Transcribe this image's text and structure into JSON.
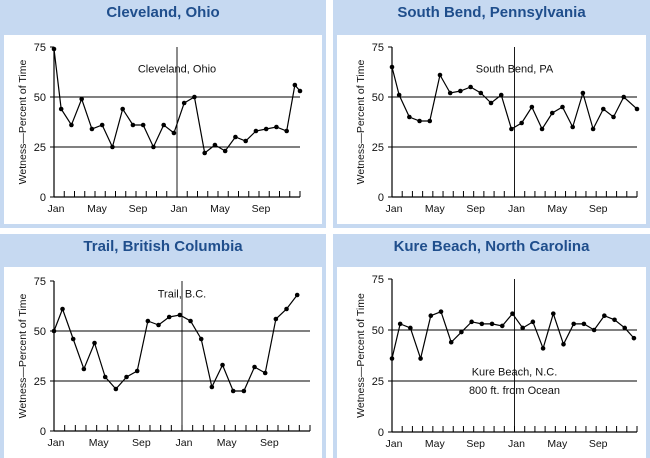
{
  "chart_data": [
    {
      "type": "line",
      "title": "Cleveland, Ohio",
      "annotation": [
        "Cleveland, Ohio"
      ],
      "ylabel": "Wetness—Percent of Time",
      "ylim": [
        0,
        75
      ],
      "yticks": [
        "0",
        "25",
        "50",
        "75"
      ],
      "xticks": [
        "Jan",
        "May",
        "Sep",
        "Jan",
        "May",
        "Sep"
      ],
      "xrange": [
        0,
        24
      ],
      "hlines": [
        25,
        50
      ],
      "vline": 12,
      "series": [
        {
          "values": [
            {
              "x": 0,
              "y": 74
            },
            {
              "x": 0.7,
              "y": 44
            },
            {
              "x": 1.7,
              "y": 36
            },
            {
              "x": 2.7,
              "y": 49
            },
            {
              "x": 3.7,
              "y": 34
            },
            {
              "x": 4.7,
              "y": 36
            },
            {
              "x": 5.7,
              "y": 25
            },
            {
              "x": 6.7,
              "y": 44
            },
            {
              "x": 7.7,
              "y": 36
            },
            {
              "x": 8.7,
              "y": 36
            },
            {
              "x": 9.7,
              "y": 25
            },
            {
              "x": 10.7,
              "y": 36
            },
            {
              "x": 11.7,
              "y": 32
            },
            {
              "x": 12.7,
              "y": 47
            },
            {
              "x": 13.7,
              "y": 50
            },
            {
              "x": 14.7,
              "y": 22
            },
            {
              "x": 15.7,
              "y": 26
            },
            {
              "x": 16.7,
              "y": 23
            },
            {
              "x": 17.7,
              "y": 30
            },
            {
              "x": 18.7,
              "y": 28
            },
            {
              "x": 19.7,
              "y": 33
            },
            {
              "x": 20.7,
              "y": 34
            },
            {
              "x": 21.7,
              "y": 35
            },
            {
              "x": 22.7,
              "y": 33
            },
            {
              "x": 23.5,
              "y": 56
            },
            {
              "x": 24,
              "y": 53
            }
          ]
        }
      ]
    },
    {
      "type": "line",
      "title": "South Bend, Pennsylvania",
      "annotation": [
        "South Bend, PA"
      ],
      "ylabel": "Wetness—Percent of Time",
      "ylim": [
        0,
        75
      ],
      "yticks": [
        "0",
        "25",
        "50",
        "75"
      ],
      "xticks": [
        "Jan",
        "May",
        "Sep",
        "Jan",
        "May",
        "Sep"
      ],
      "xrange": [
        0,
        24
      ],
      "hlines": [
        25,
        50
      ],
      "vline": 12,
      "series": [
        {
          "values": [
            {
              "x": 0,
              "y": 65
            },
            {
              "x": 0.7,
              "y": 51
            },
            {
              "x": 1.7,
              "y": 40
            },
            {
              "x": 2.7,
              "y": 38
            },
            {
              "x": 3.7,
              "y": 38
            },
            {
              "x": 4.7,
              "y": 61
            },
            {
              "x": 5.7,
              "y": 52
            },
            {
              "x": 6.7,
              "y": 53
            },
            {
              "x": 7.7,
              "y": 55
            },
            {
              "x": 8.7,
              "y": 52
            },
            {
              "x": 9.7,
              "y": 47
            },
            {
              "x": 10.7,
              "y": 51
            },
            {
              "x": 11.7,
              "y": 34
            },
            {
              "x": 12.7,
              "y": 37
            },
            {
              "x": 13.7,
              "y": 45
            },
            {
              "x": 14.7,
              "y": 34
            },
            {
              "x": 15.7,
              "y": 42
            },
            {
              "x": 16.7,
              "y": 45
            },
            {
              "x": 17.7,
              "y": 35
            },
            {
              "x": 18.7,
              "y": 52
            },
            {
              "x": 19.7,
              "y": 34
            },
            {
              "x": 20.7,
              "y": 44
            },
            {
              "x": 21.7,
              "y": 40
            },
            {
              "x": 22.7,
              "y": 50
            },
            {
              "x": 24,
              "y": 44
            }
          ]
        }
      ]
    },
    {
      "type": "line",
      "title": "Trail, British Columbia",
      "annotation": [
        "Trail, B.C."
      ],
      "ylabel": "Wetness—Percent of Time",
      "ylim": [
        0,
        75
      ],
      "yticks": [
        "0",
        "25",
        "50",
        "75"
      ],
      "xticks": [
        "Jan",
        "May",
        "Sep",
        "Jan",
        "May",
        "Sep"
      ],
      "xrange": [
        0,
        24
      ],
      "hlines": [
        25,
        50
      ],
      "vline": 12,
      "series": [
        {
          "values": [
            {
              "x": 0,
              "y": 50
            },
            {
              "x": 0.8,
              "y": 61
            },
            {
              "x": 1.8,
              "y": 46
            },
            {
              "x": 2.8,
              "y": 31
            },
            {
              "x": 3.8,
              "y": 44
            },
            {
              "x": 4.8,
              "y": 27
            },
            {
              "x": 5.8,
              "y": 21
            },
            {
              "x": 6.8,
              "y": 27
            },
            {
              "x": 7.8,
              "y": 30
            },
            {
              "x": 8.8,
              "y": 55
            },
            {
              "x": 9.8,
              "y": 53
            },
            {
              "x": 10.8,
              "y": 57
            },
            {
              "x": 11.8,
              "y": 58
            },
            {
              "x": 12.8,
              "y": 55
            },
            {
              "x": 13.8,
              "y": 46
            },
            {
              "x": 14.8,
              "y": 22
            },
            {
              "x": 15.8,
              "y": 33
            },
            {
              "x": 16.8,
              "y": 20
            },
            {
              "x": 17.8,
              "y": 20
            },
            {
              "x": 18.8,
              "y": 32
            },
            {
              "x": 19.8,
              "y": 29
            },
            {
              "x": 20.8,
              "y": 56
            },
            {
              "x": 21.8,
              "y": 61
            },
            {
              "x": 22.8,
              "y": 68
            }
          ]
        }
      ]
    },
    {
      "type": "line",
      "title": "Kure Beach, North Carolina",
      "annotation": [
        "Kure Beach, N.C.",
        "800 ft. from Ocean"
      ],
      "ylabel": "Wetness—Percent of Time",
      "ylim": [
        0,
        75
      ],
      "yticks": [
        "0",
        "25",
        "50",
        "75"
      ],
      "xticks": [
        "Jan",
        "May",
        "Sep",
        "Jan",
        "May",
        "Sep"
      ],
      "xrange": [
        0,
        24
      ],
      "hlines": [
        25,
        50
      ],
      "vline": 12,
      "series": [
        {
          "values": [
            {
              "x": 0,
              "y": 36
            },
            {
              "x": 0.8,
              "y": 53
            },
            {
              "x": 1.8,
              "y": 51
            },
            {
              "x": 2.8,
              "y": 36
            },
            {
              "x": 3.8,
              "y": 57
            },
            {
              "x": 4.8,
              "y": 59
            },
            {
              "x": 5.8,
              "y": 44
            },
            {
              "x": 6.8,
              "y": 49
            },
            {
              "x": 7.8,
              "y": 54
            },
            {
              "x": 8.8,
              "y": 53
            },
            {
              "x": 9.8,
              "y": 53
            },
            {
              "x": 10.8,
              "y": 52
            },
            {
              "x": 11.8,
              "y": 58
            },
            {
              "x": 12.8,
              "y": 51
            },
            {
              "x": 13.8,
              "y": 54
            },
            {
              "x": 14.8,
              "y": 41
            },
            {
              "x": 15.8,
              "y": 58
            },
            {
              "x": 16.8,
              "y": 43
            },
            {
              "x": 17.8,
              "y": 53
            },
            {
              "x": 18.8,
              "y": 53
            },
            {
              "x": 19.8,
              "y": 50
            },
            {
              "x": 20.8,
              "y": 57
            },
            {
              "x": 21.8,
              "y": 55
            },
            {
              "x": 22.8,
              "y": 51
            },
            {
              "x": 23.7,
              "y": 46
            }
          ]
        }
      ]
    }
  ]
}
